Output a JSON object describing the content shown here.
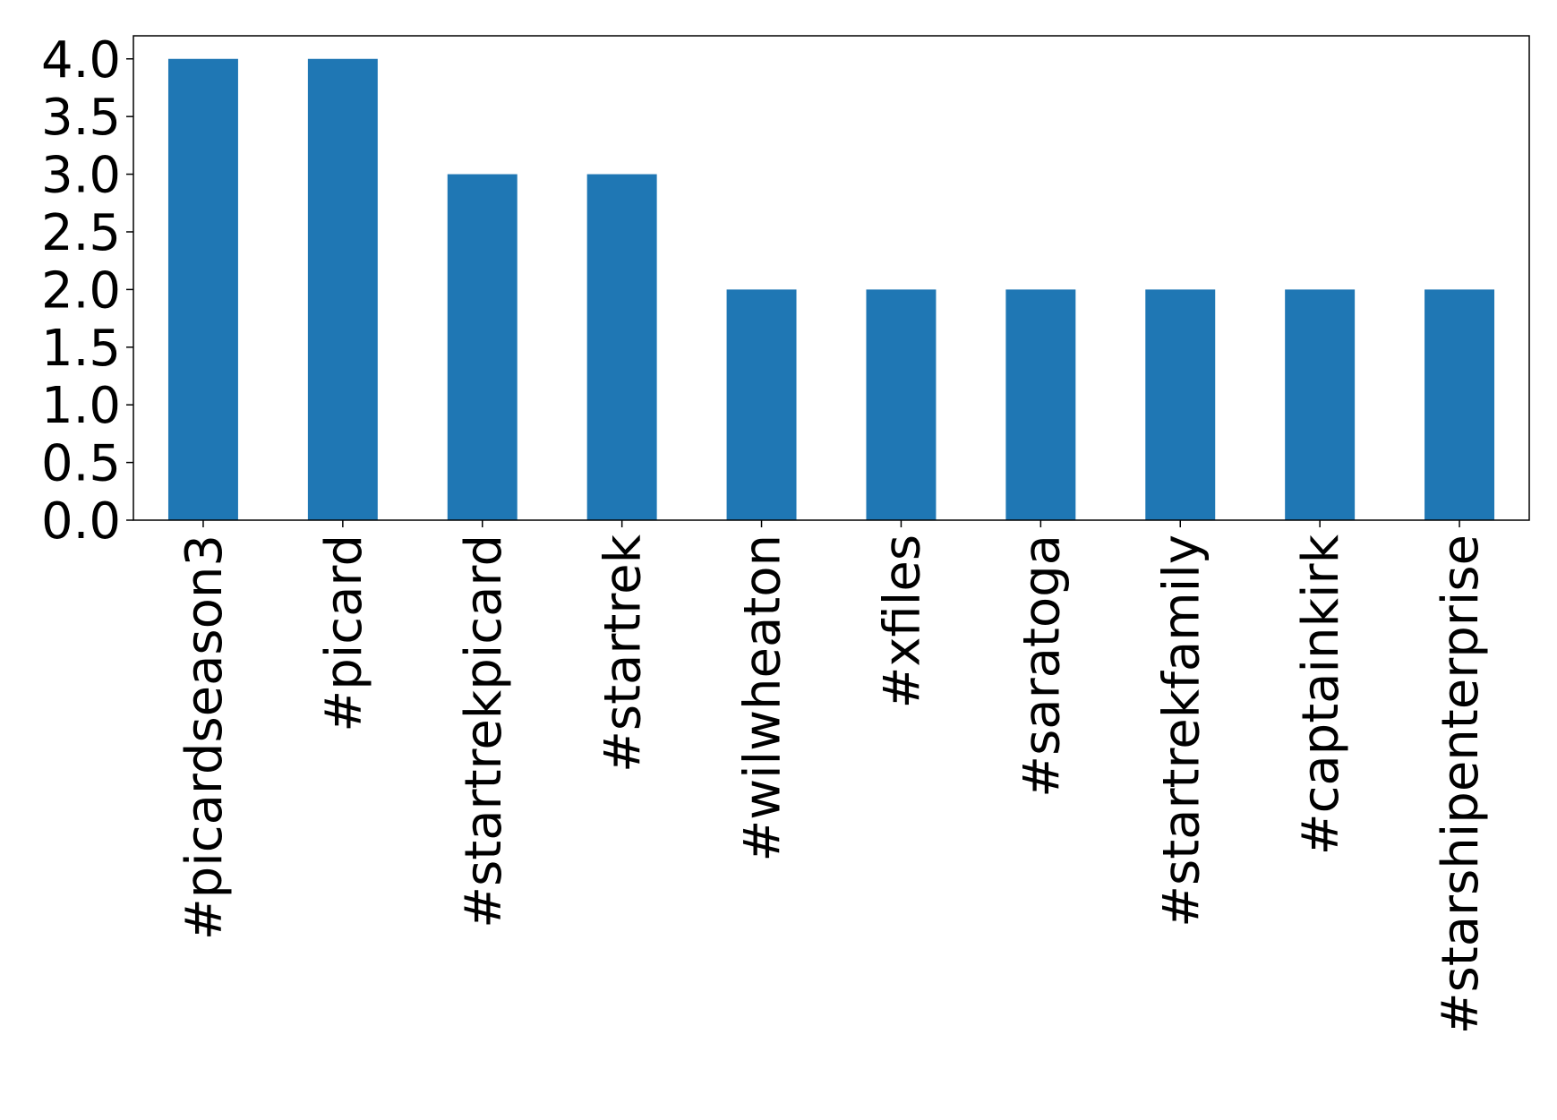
{
  "chart_data": {
    "type": "bar",
    "categories": [
      "#picardseason3",
      "#picard",
      "#startrekpicard",
      "#startrek",
      "#wilwheaton",
      "#xfiles",
      "#saratoga",
      "#startrekfamily",
      "#captainkirk",
      "#starshipenterprise"
    ],
    "values": [
      4,
      4,
      3,
      3,
      2,
      2,
      2,
      2,
      2,
      2
    ],
    "color": "#1f77b4",
    "ylim": [
      0,
      4.2
    ],
    "yticks": [
      {
        "value": 0,
        "label": "0.0"
      },
      {
        "value": 0.5,
        "label": "0.5"
      },
      {
        "value": 1,
        "label": "1.0"
      },
      {
        "value": 1.5,
        "label": "1.5"
      },
      {
        "value": 2,
        "label": "2.0"
      },
      {
        "value": 2.5,
        "label": "2.5"
      },
      {
        "value": 3,
        "label": "3.0"
      },
      {
        "value": 3.5,
        "label": "3.5"
      },
      {
        "value": 4,
        "label": "4.0"
      }
    ],
    "grid": false
  }
}
